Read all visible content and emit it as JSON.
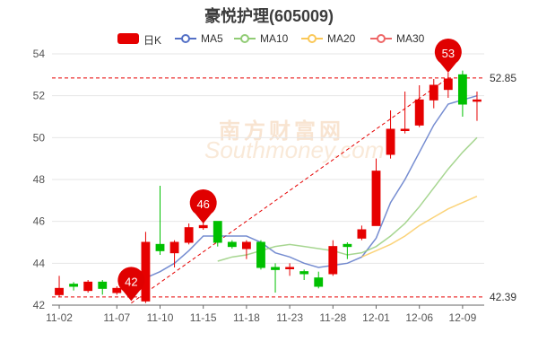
{
  "header": {
    "title": "豪悦护理(605009)"
  },
  "legend": [
    {
      "label": "日K",
      "color": "#e60000",
      "kind": "kline"
    },
    {
      "label": "MA5",
      "color": "#5470c6",
      "kind": "ma"
    },
    {
      "label": "MA10",
      "color": "#91cc75",
      "kind": "ma"
    },
    {
      "label": "MA20",
      "color": "#fac858",
      "kind": "ma"
    },
    {
      "label": "MA30",
      "color": "#ee6666",
      "kind": "ma"
    }
  ],
  "watermark": {
    "cn": "南方财富网",
    "en": "Southmoney.com"
  },
  "colors": {
    "up": "#e60000",
    "down": "#00c000",
    "grid": "#e6e6e6",
    "dashed": "#e60000",
    "marker": "#e00000"
  },
  "chart_data": {
    "type": "candlestick",
    "title": "豪悦护理(605009)",
    "ylim": [
      42,
      54
    ],
    "yticks": [
      42,
      44,
      46,
      48,
      50,
      52,
      54
    ],
    "x_tick_labels": [
      "11-02",
      "11-07",
      "11-10",
      "11-15",
      "11-18",
      "11-23",
      "11-28",
      "12-01",
      "12-06",
      "12-09"
    ],
    "x_tick_index": [
      0,
      4,
      7,
      10,
      13,
      16,
      19,
      22,
      25,
      28
    ],
    "candles": [
      {
        "o": 42.5,
        "c": 42.8,
        "h": 43.4,
        "l": 42.4
      },
      {
        "o": 43.0,
        "c": 42.9,
        "h": 43.1,
        "l": 42.7
      },
      {
        "o": 42.7,
        "c": 43.1,
        "h": 43.2,
        "l": 42.6
      },
      {
        "o": 43.1,
        "c": 42.8,
        "h": 43.2,
        "l": 42.5
      },
      {
        "o": 42.6,
        "c": 42.8,
        "h": 42.9,
        "l": 42.5
      },
      {
        "o": 42.6,
        "c": 42.7,
        "h": 42.8,
        "l": 42.5
      },
      {
        "o": 42.2,
        "c": 45.0,
        "h": 45.5,
        "l": 42.1
      },
      {
        "o": 44.9,
        "c": 44.6,
        "h": 47.7,
        "l": 44.4
      },
      {
        "o": 44.5,
        "c": 45.0,
        "h": 45.1,
        "l": 43.8
      },
      {
        "o": 45.0,
        "c": 45.7,
        "h": 45.9,
        "l": 44.9
      },
      {
        "o": 45.7,
        "c": 45.8,
        "h": 46.1,
        "l": 45.6
      },
      {
        "o": 46.0,
        "c": 45.0,
        "h": 46.0,
        "l": 44.8
      },
      {
        "o": 45.0,
        "c": 44.8,
        "h": 45.1,
        "l": 44.7
      },
      {
        "o": 44.7,
        "c": 45.0,
        "h": 45.1,
        "l": 44.2
      },
      {
        "o": 45.0,
        "c": 43.8,
        "h": 45.1,
        "l": 43.7
      },
      {
        "o": 43.8,
        "c": 43.7,
        "h": 44.0,
        "l": 42.6
      },
      {
        "o": 43.8,
        "c": 43.8,
        "h": 44.0,
        "l": 43.4
      },
      {
        "o": 43.6,
        "c": 43.5,
        "h": 43.7,
        "l": 43.2
      },
      {
        "o": 43.3,
        "c": 42.9,
        "h": 43.6,
        "l": 42.8
      },
      {
        "o": 43.5,
        "c": 44.8,
        "h": 45.1,
        "l": 43.4
      },
      {
        "o": 44.9,
        "c": 44.8,
        "h": 45.0,
        "l": 44.2
      },
      {
        "o": 45.2,
        "c": 45.6,
        "h": 45.8,
        "l": 45.1
      },
      {
        "o": 45.8,
        "c": 48.4,
        "h": 49.0,
        "l": 45.8
      },
      {
        "o": 49.2,
        "c": 50.4,
        "h": 51.3,
        "l": 49.0
      },
      {
        "o": 50.4,
        "c": 50.4,
        "h": 52.2,
        "l": 50.2
      },
      {
        "o": 50.6,
        "c": 51.8,
        "h": 52.5,
        "l": 50.5
      },
      {
        "o": 51.8,
        "c": 52.5,
        "h": 52.8,
        "l": 51.4
      },
      {
        "o": 52.3,
        "c": 52.8,
        "h": 53.1,
        "l": 51.9
      },
      {
        "o": 53.0,
        "c": 51.6,
        "h": 53.2,
        "l": 51.0
      },
      {
        "o": 51.8,
        "c": 51.8,
        "h": 52.2,
        "l": 50.8
      }
    ],
    "series": [
      {
        "name": "MA5",
        "start": 6,
        "values": [
          43.3,
          43.6,
          44.0,
          44.6,
          45.3,
          45.3,
          45.3,
          45.3,
          45.0,
          44.5,
          44.3,
          44.0,
          43.8,
          43.9,
          44.0,
          44.3,
          45.2,
          46.9,
          48.0,
          49.3,
          50.6,
          51.6,
          51.8,
          52.0
        ]
      },
      {
        "name": "MA10",
        "start": 11,
        "values": [
          44.1,
          44.3,
          44.4,
          44.6,
          44.8,
          44.9,
          44.8,
          44.7,
          44.6,
          44.4,
          44.5,
          44.8,
          45.3,
          45.9,
          46.7,
          47.6,
          48.5,
          49.3,
          50.0
        ]
      },
      {
        "name": "MA20",
        "start": 21,
        "values": [
          44.3,
          44.6,
          44.9,
          45.3,
          45.8,
          46.2,
          46.6,
          46.9,
          47.2
        ]
      },
      {
        "name": "MA30",
        "start": 30,
        "values": []
      }
    ],
    "markers": [
      {
        "label": "53",
        "index": 27,
        "value": 53.1
      },
      {
        "label": "46",
        "index": 10,
        "value": 45.9
      },
      {
        "label": "42",
        "index": 5,
        "value": 42.2
      }
    ],
    "ref_lines": [
      {
        "label": "52.85",
        "value": 52.85
      },
      {
        "label": "42.39",
        "value": 42.39
      }
    ],
    "trend_line": {
      "from": {
        "index": 5,
        "value": 42.1
      },
      "to": {
        "index": 27,
        "value": 52.85
      }
    }
  }
}
